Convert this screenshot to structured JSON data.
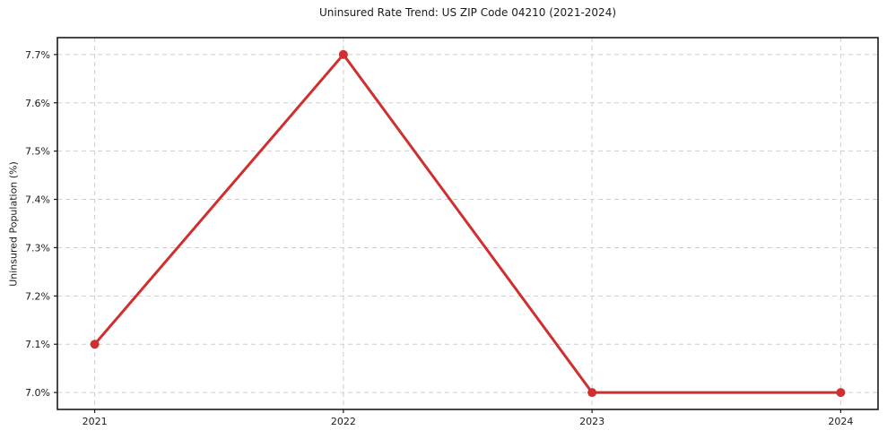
{
  "chart_data": {
    "type": "line",
    "title": "Uninsured Rate Trend: US ZIP Code 04210 (2021-2024)",
    "xlabel": "",
    "ylabel": "Uninsured Population (%)",
    "x": [
      2021,
      2022,
      2023,
      2024
    ],
    "x_tick_labels": [
      "2021",
      "2022",
      "2023",
      "2024"
    ],
    "values": [
      7.1,
      7.7,
      7.0,
      7.0
    ],
    "y_ticks": [
      7.0,
      7.1,
      7.2,
      7.3,
      7.4,
      7.5,
      7.6,
      7.7
    ],
    "y_tick_labels": [
      "7.0%",
      "7.1%",
      "7.2%",
      "7.3%",
      "7.4%",
      "7.5%",
      "7.6%",
      "7.7%"
    ],
    "xlim": [
      2020.85,
      2024.15
    ],
    "ylim": [
      6.965,
      7.735
    ],
    "grid": true,
    "legend": "none",
    "colors": {
      "line": "#d02f2f",
      "marker": "#d02f2f",
      "grid": "#cdcdcd",
      "frame": "#1a1a1a",
      "text": "#1a1a1a",
      "background": "#ffffff"
    }
  }
}
